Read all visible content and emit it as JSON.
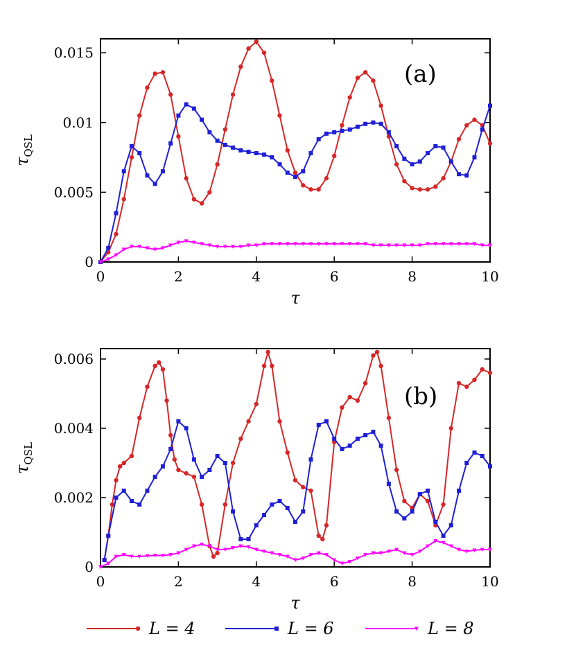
{
  "chart_data": [
    {
      "type": "line",
      "panel_label": "(a)",
      "xlabel": "τ",
      "ylabel": "τ",
      "ylabel_sub": "QSL",
      "xlim": [
        0,
        10
      ],
      "ylim": [
        0,
        0.016
      ],
      "xticks": [
        0,
        2,
        4,
        6,
        8,
        10
      ],
      "xtick_labels": [
        "0",
        "2",
        "4",
        "6",
        "8",
        "10"
      ],
      "yticks": [
        0,
        0.005,
        0.01,
        0.015
      ],
      "ytick_labels": [
        "0",
        "0.005",
        "0.01",
        "0.015"
      ],
      "grid": false,
      "series": [
        {
          "name": "L = 4",
          "color": "#d62728",
          "marker": "circle",
          "x": [
            0,
            0.2,
            0.4,
            0.6,
            0.8,
            1.0,
            1.2,
            1.4,
            1.6,
            1.8,
            2.0,
            2.2,
            2.4,
            2.6,
            2.8,
            3.0,
            3.2,
            3.4,
            3.6,
            3.8,
            4.0,
            4.2,
            4.4,
            4.6,
            4.8,
            5.0,
            5.2,
            5.4,
            5.6,
            5.8,
            6.0,
            6.2,
            6.4,
            6.6,
            6.8,
            7.0,
            7.2,
            7.4,
            7.6,
            7.8,
            8.0,
            8.2,
            8.4,
            8.6,
            8.8,
            9.0,
            9.2,
            9.4,
            9.6,
            9.8,
            10.0
          ],
          "y": [
            0,
            0.0007,
            0.002,
            0.0045,
            0.0075,
            0.0105,
            0.0125,
            0.0135,
            0.0136,
            0.012,
            0.009,
            0.006,
            0.0045,
            0.0042,
            0.005,
            0.007,
            0.0095,
            0.012,
            0.014,
            0.0153,
            0.0158,
            0.015,
            0.013,
            0.0105,
            0.008,
            0.0064,
            0.0055,
            0.0052,
            0.0052,
            0.006,
            0.0076,
            0.0098,
            0.0118,
            0.0132,
            0.0136,
            0.013,
            0.0112,
            0.009,
            0.007,
            0.0058,
            0.0053,
            0.0052,
            0.0052,
            0.0054,
            0.006,
            0.0072,
            0.0088,
            0.0098,
            0.0102,
            0.0098,
            0.0085
          ]
        },
        {
          "name": "L = 6",
          "color": "#1f1fd6",
          "marker": "square",
          "x": [
            0,
            0.2,
            0.4,
            0.6,
            0.8,
            1.0,
            1.2,
            1.4,
            1.6,
            1.8,
            2.0,
            2.2,
            2.4,
            2.6,
            2.8,
            3.0,
            3.2,
            3.4,
            3.6,
            3.8,
            4.0,
            4.2,
            4.4,
            4.6,
            4.8,
            5.0,
            5.2,
            5.4,
            5.6,
            5.8,
            6.0,
            6.2,
            6.4,
            6.6,
            6.8,
            7.0,
            7.2,
            7.4,
            7.6,
            7.8,
            8.0,
            8.2,
            8.4,
            8.6,
            8.8,
            9.0,
            9.2,
            9.4,
            9.6,
            9.8,
            10.0
          ],
          "y": [
            0,
            0.001,
            0.0035,
            0.0065,
            0.0083,
            0.0078,
            0.0062,
            0.0056,
            0.0065,
            0.0085,
            0.0105,
            0.0113,
            0.011,
            0.0102,
            0.0093,
            0.0087,
            0.0084,
            0.0082,
            0.008,
            0.0079,
            0.0078,
            0.0077,
            0.0075,
            0.007,
            0.0064,
            0.0061,
            0.0065,
            0.0078,
            0.0088,
            0.0092,
            0.0093,
            0.0094,
            0.0095,
            0.0097,
            0.0099,
            0.01,
            0.0099,
            0.0093,
            0.0083,
            0.0074,
            0.007,
            0.0072,
            0.0078,
            0.0083,
            0.0082,
            0.0072,
            0.0063,
            0.0062,
            0.0075,
            0.0095,
            0.0112
          ]
        },
        {
          "name": "L = 8",
          "color": "#ff00ff",
          "marker": "triangle",
          "x": [
            0,
            0.2,
            0.4,
            0.6,
            0.8,
            1.0,
            1.2,
            1.4,
            1.6,
            1.8,
            2.0,
            2.2,
            2.4,
            2.6,
            2.8,
            3.0,
            3.2,
            3.4,
            3.6,
            3.8,
            4.0,
            4.2,
            4.4,
            4.6,
            4.8,
            5.0,
            5.2,
            5.4,
            5.6,
            5.8,
            6.0,
            6.2,
            6.4,
            6.6,
            6.8,
            7.0,
            7.2,
            7.4,
            7.6,
            7.8,
            8.0,
            8.2,
            8.4,
            8.6,
            8.8,
            9.0,
            9.2,
            9.4,
            9.6,
            9.8,
            10.0
          ],
          "y": [
            0,
            0.0002,
            0.0005,
            0.0009,
            0.0011,
            0.0011,
            0.001,
            0.0009,
            0.001,
            0.0012,
            0.0014,
            0.0015,
            0.0014,
            0.0013,
            0.0012,
            0.0011,
            0.0011,
            0.0011,
            0.0011,
            0.0012,
            0.0012,
            0.0013,
            0.0013,
            0.0013,
            0.0013,
            0.0013,
            0.0013,
            0.0013,
            0.0013,
            0.0013,
            0.0013,
            0.0013,
            0.0013,
            0.0013,
            0.0013,
            0.0012,
            0.0012,
            0.0012,
            0.0012,
            0.0012,
            0.0012,
            0.0012,
            0.0013,
            0.0013,
            0.0013,
            0.0013,
            0.0013,
            0.0013,
            0.0013,
            0.0012,
            0.0012
          ]
        }
      ]
    },
    {
      "type": "line",
      "panel_label": "(b)",
      "xlabel": "τ",
      "ylabel": "τ",
      "ylabel_sub": "QSL",
      "xlim": [
        0,
        10
      ],
      "ylim": [
        0,
        0.0063
      ],
      "xticks": [
        0,
        2,
        4,
        6,
        8,
        10
      ],
      "xtick_labels": [
        "0",
        "2",
        "4",
        "6",
        "8",
        "10"
      ],
      "yticks": [
        0,
        0.002,
        0.004,
        0.006
      ],
      "ytick_labels": [
        "0",
        "0.002",
        "0.004",
        "0.006"
      ],
      "grid": false,
      "series": [
        {
          "name": "L = 4",
          "color": "#d62728",
          "marker": "circle",
          "x": [
            0.1,
            0.2,
            0.3,
            0.4,
            0.5,
            0.6,
            0.8,
            1.0,
            1.2,
            1.4,
            1.5,
            1.6,
            1.7,
            1.8,
            1.9,
            2.0,
            2.2,
            2.4,
            2.6,
            2.8,
            2.9,
            3.0,
            3.2,
            3.4,
            3.6,
            3.8,
            4.0,
            4.2,
            4.3,
            4.4,
            4.6,
            4.8,
            5.0,
            5.2,
            5.4,
            5.6,
            5.7,
            5.8,
            6.0,
            6.2,
            6.4,
            6.6,
            6.8,
            7.0,
            7.1,
            7.2,
            7.4,
            7.6,
            7.8,
            8.0,
            8.2,
            8.4,
            8.6,
            8.8,
            9.0,
            9.2,
            9.4,
            9.6,
            9.8,
            10.0
          ],
          "y": [
            0.0002,
            0.0009,
            0.0018,
            0.0025,
            0.0029,
            0.003,
            0.0032,
            0.0043,
            0.0052,
            0.0058,
            0.0059,
            0.0057,
            0.0048,
            0.0038,
            0.0031,
            0.0028,
            0.0027,
            0.0026,
            0.0018,
            0.0006,
            0.0003,
            0.0004,
            0.0018,
            0.003,
            0.0037,
            0.0042,
            0.0047,
            0.0058,
            0.0062,
            0.0058,
            0.0042,
            0.0033,
            0.0025,
            0.0023,
            0.0022,
            0.0009,
            0.0008,
            0.0012,
            0.0036,
            0.0046,
            0.0049,
            0.0048,
            0.0053,
            0.0061,
            0.0062,
            0.0058,
            0.0043,
            0.0028,
            0.0019,
            0.0017,
            0.0021,
            0.0019,
            0.0012,
            0.0018,
            0.004,
            0.0053,
            0.0052,
            0.0054,
            0.0057,
            0.0056
          ]
        },
        {
          "name": "L = 6",
          "color": "#1f1fd6",
          "marker": "square",
          "x": [
            0.1,
            0.2,
            0.4,
            0.6,
            0.8,
            1.0,
            1.2,
            1.4,
            1.6,
            1.8,
            2.0,
            2.2,
            2.4,
            2.6,
            2.8,
            3.0,
            3.2,
            3.4,
            3.6,
            3.8,
            4.0,
            4.2,
            4.4,
            4.6,
            4.8,
            5.0,
            5.2,
            5.4,
            5.6,
            5.8,
            6.0,
            6.2,
            6.4,
            6.6,
            6.8,
            7.0,
            7.2,
            7.4,
            7.6,
            7.8,
            8.0,
            8.2,
            8.4,
            8.6,
            8.8,
            9.0,
            9.2,
            9.4,
            9.6,
            9.8,
            10.0
          ],
          "y": [
            0.0002,
            0.0009,
            0.002,
            0.0022,
            0.0019,
            0.0018,
            0.0022,
            0.0026,
            0.0029,
            0.0034,
            0.0042,
            0.004,
            0.0031,
            0.0026,
            0.0028,
            0.0032,
            0.003,
            0.0016,
            0.0008,
            0.0008,
            0.0012,
            0.0015,
            0.0018,
            0.0019,
            0.0017,
            0.0013,
            0.0016,
            0.0031,
            0.0041,
            0.0042,
            0.0037,
            0.0034,
            0.0035,
            0.0037,
            0.0038,
            0.0039,
            0.0035,
            0.0024,
            0.0016,
            0.0014,
            0.0016,
            0.0021,
            0.0022,
            0.0013,
            0.0009,
            0.0012,
            0.0022,
            0.003,
            0.0033,
            0.0032,
            0.0029
          ]
        },
        {
          "name": "L = 8",
          "color": "#ff00ff",
          "marker": "triangle",
          "x": [
            0,
            0.2,
            0.4,
            0.6,
            0.8,
            1.0,
            1.2,
            1.4,
            1.6,
            1.8,
            2.0,
            2.2,
            2.4,
            2.6,
            2.8,
            3.0,
            3.2,
            3.4,
            3.6,
            3.8,
            4.0,
            4.2,
            4.4,
            4.6,
            4.8,
            5.0,
            5.2,
            5.4,
            5.6,
            5.8,
            6.0,
            6.2,
            6.4,
            6.6,
            6.8,
            7.0,
            7.2,
            7.4,
            7.6,
            7.8,
            8.0,
            8.2,
            8.4,
            8.6,
            8.8,
            9.0,
            9.2,
            9.4,
            9.6,
            9.8,
            10.0
          ],
          "y": [
            0,
            0.0001,
            0.0003,
            0.00035,
            0.0003,
            0.0003,
            0.00032,
            0.00033,
            0.00033,
            0.00035,
            0.0004,
            0.0005,
            0.0006,
            0.00065,
            0.0006,
            0.0005,
            0.0005,
            0.00055,
            0.0006,
            0.00058,
            0.0005,
            0.00045,
            0.0004,
            0.00035,
            0.0003,
            0.0002,
            0.00025,
            0.00035,
            0.0004,
            0.00035,
            0.0002,
            0.0001,
            0.00015,
            0.00025,
            0.00035,
            0.0004,
            0.0004,
            0.00045,
            0.0005,
            0.0004,
            0.00035,
            0.00045,
            0.0006,
            0.00075,
            0.0007,
            0.0006,
            0.0005,
            0.00045,
            0.00048,
            0.0005,
            0.0005
          ]
        }
      ]
    }
  ],
  "legend": [
    {
      "name": "L = 4",
      "color": "#d62728",
      "marker": "circle"
    },
    {
      "name": "L = 6",
      "color": "#1f1fd6",
      "marker": "square"
    },
    {
      "name": "L = 8",
      "color": "#ff00ff",
      "marker": "triangle"
    }
  ]
}
